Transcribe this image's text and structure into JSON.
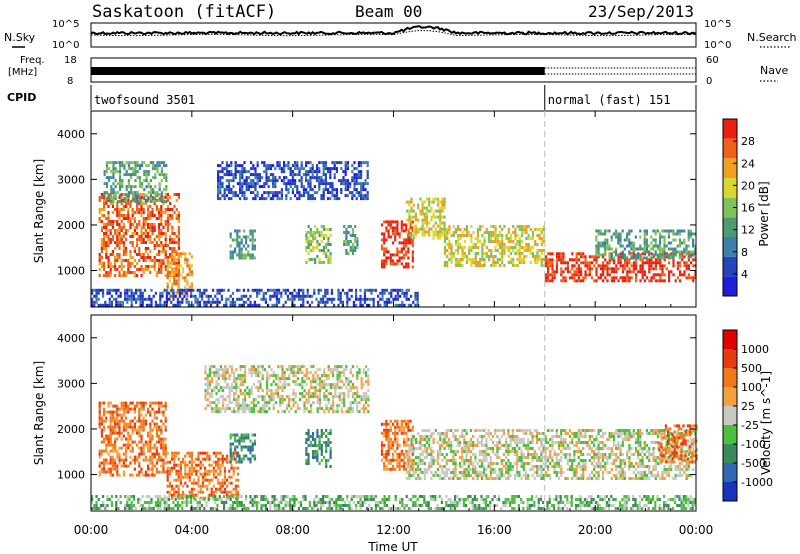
{
  "header": {
    "station": "Saskatoon (fitACF)",
    "beam": "Beam 00",
    "date": "23/Sep/2013"
  },
  "strips": {
    "nsky_label": "N.Sky",
    "nsearch_label": "N.Search",
    "freq_label_1": "Freq.",
    "freq_label_2": "[MHz]",
    "nave_label": "Nave",
    "cpid_label": "CPID",
    "noise_left_ticks": [
      "10^5",
      "10^0"
    ],
    "noise_right_ticks": [
      "10^5",
      "10^0"
    ],
    "freq_ticks": [
      "18",
      "8"
    ],
    "nave_ticks": [
      "60",
      "0"
    ],
    "cpid_segments": [
      {
        "label": "twofsound 3501",
        "start_hour": 0,
        "end_hour": 18
      },
      {
        "label": "normal (fast) 151",
        "start_hour": 18,
        "end_hour": 24
      }
    ]
  },
  "chart_data": [
    {
      "type": "heatmap",
      "title": "",
      "xlabel": "Time UT",
      "ylabel": "Slant Range [km]",
      "x_ticks": [
        "00:00",
        "04:00",
        "08:00",
        "12:00",
        "16:00",
        "20:00",
        "00:00"
      ],
      "y_ticks": [
        "1000",
        "2000",
        "3000",
        "4000"
      ],
      "xlim_hours": [
        0,
        24
      ],
      "ylim_km": [
        200,
        4500
      ],
      "colorbar": {
        "label": "Power [dB]",
        "ticks": [
          "4",
          "8",
          "12",
          "16",
          "20",
          "24",
          "28"
        ],
        "colors": [
          "#1f1fdb",
          "#2546b8",
          "#3d7fa8",
          "#4e9b73",
          "#7fc25a",
          "#d8d830",
          "#f0a020",
          "#f06018",
          "#e82010"
        ]
      },
      "regions": [
        {
          "t0": 0.3,
          "t1": 3.5,
          "r0": 900,
          "r1": 2700,
          "level": 7
        },
        {
          "t0": 0.5,
          "t1": 3.0,
          "r0": 2500,
          "r1": 3400,
          "level": 3
        },
        {
          "t0": 3.0,
          "t1": 4.0,
          "r0": 400,
          "r1": 1400,
          "level": 6
        },
        {
          "t0": 5.0,
          "t1": 11.0,
          "r0": 2600,
          "r1": 3400,
          "level": 1
        },
        {
          "t0": 5.5,
          "t1": 6.5,
          "r0": 1300,
          "r1": 1900,
          "level": 3
        },
        {
          "t0": 8.5,
          "t1": 9.5,
          "r0": 1200,
          "r1": 2000,
          "level": 4
        },
        {
          "t0": 10.0,
          "t1": 10.6,
          "r0": 1400,
          "r1": 2000,
          "level": 3
        },
        {
          "t0": 11.5,
          "t1": 12.8,
          "r0": 1100,
          "r1": 2100,
          "level": 8
        },
        {
          "t0": 12.5,
          "t1": 14.0,
          "r0": 1700,
          "r1": 2600,
          "level": 5
        },
        {
          "t0": 14.0,
          "t1": 18.0,
          "r0": 1100,
          "r1": 2000,
          "level": 5
        },
        {
          "t0": 18.0,
          "t1": 24.0,
          "r0": 800,
          "r1": 1400,
          "level": 8
        },
        {
          "t0": 20.0,
          "t1": 24.0,
          "r0": 1300,
          "r1": 1900,
          "level": 3
        },
        {
          "t0": 0.0,
          "t1": 13.0,
          "r0": 250,
          "r1": 600,
          "level": 1
        }
      ]
    },
    {
      "type": "heatmap",
      "title": "",
      "xlabel": "Time UT",
      "ylabel": "Slant Range [km]",
      "x_ticks": [
        "00:00",
        "04:00",
        "08:00",
        "12:00",
        "16:00",
        "20:00",
        "00:00"
      ],
      "y_ticks": [
        "1000",
        "2000",
        "3000",
        "4000"
      ],
      "xlim_hours": [
        0,
        24
      ],
      "ylim_km": [
        200,
        4500
      ],
      "colorbar": {
        "label": "Velocity [m s^-1]",
        "ticks": [
          "1000",
          "500",
          "100",
          "25",
          "-25",
          "-100",
          "-500",
          "-1000"
        ],
        "colors": [
          "#1a33c0",
          "#2f6ab0",
          "#3b8a5a",
          "#4cbf3f",
          "#c8c8c4",
          "#f4a040",
          "#f07818",
          "#e83a10",
          "#e00000"
        ]
      },
      "regions": [
        {
          "t0": 0.3,
          "t1": 3.0,
          "r0": 1000,
          "r1": 2600,
          "level": 6
        },
        {
          "t0": 3.0,
          "t1": 5.8,
          "r0": 500,
          "r1": 1500,
          "level": 6
        },
        {
          "t0": 4.5,
          "t1": 11.0,
          "r0": 2400,
          "r1": 3400,
          "level": 4
        },
        {
          "t0": 5.5,
          "t1": 6.5,
          "r0": 1300,
          "r1": 1900,
          "level": 2
        },
        {
          "t0": 8.5,
          "t1": 9.5,
          "r0": 1200,
          "r1": 2000,
          "level": 2
        },
        {
          "t0": 11.5,
          "t1": 12.8,
          "r0": 1100,
          "r1": 2200,
          "level": 6
        },
        {
          "t0": 12.5,
          "t1": 24.0,
          "r0": 900,
          "r1": 2000,
          "level": 4
        },
        {
          "t0": 22.5,
          "t1": 24.0,
          "r0": 1300,
          "r1": 2100,
          "level": 6
        },
        {
          "t0": 0.0,
          "t1": 24.0,
          "r0": 250,
          "r1": 550,
          "level": 3
        }
      ]
    }
  ]
}
